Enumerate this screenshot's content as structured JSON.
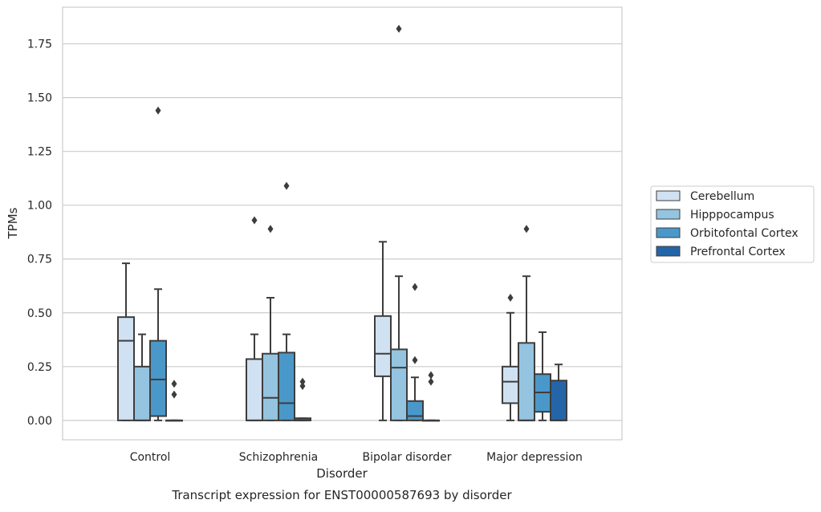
{
  "chart_data": {
    "type": "box",
    "xlabel": "Disorder",
    "ylabel": "TPMs",
    "caption": "Transcript expression for ENST00000587693 by disorder",
    "ylim": [
      -0.09,
      1.92
    ],
    "yticks": [
      "0.00",
      "0.25",
      "0.50",
      "0.75",
      "1.00",
      "1.25",
      "1.50",
      "1.75"
    ],
    "grid": "horizontal",
    "legend_position": "right",
    "categories": [
      "Control",
      "Schizophrenia",
      "Bipolar disorder",
      "Major depression"
    ],
    "series": [
      {
        "name": "Cerebellum",
        "color": "#d0e1f2",
        "boxes": [
          {
            "q1": 0.0,
            "median": 0.37,
            "q3": 0.48,
            "whislo": 0.0,
            "whishi": 0.73,
            "fliers": []
          },
          {
            "q1": 0.0,
            "median": 0.0,
            "q3": 0.285,
            "whislo": 0.0,
            "whishi": 0.4,
            "fliers": [
              0.93
            ]
          },
          {
            "q1": 0.205,
            "median": 0.31,
            "q3": 0.485,
            "whislo": 0.0,
            "whishi": 0.83,
            "fliers": []
          },
          {
            "q1": 0.08,
            "median": 0.18,
            "q3": 0.25,
            "whislo": 0.0,
            "whishi": 0.5,
            "fliers": [
              0.57
            ]
          }
        ]
      },
      {
        "name": "Hipppocampus",
        "color": "#94c4df",
        "boxes": [
          {
            "q1": 0.0,
            "median": 0.0,
            "q3": 0.25,
            "whislo": 0.0,
            "whishi": 0.4,
            "fliers": []
          },
          {
            "q1": 0.0,
            "median": 0.105,
            "q3": 0.31,
            "whislo": 0.0,
            "whishi": 0.57,
            "fliers": [
              0.89
            ]
          },
          {
            "q1": 0.0,
            "median": 0.245,
            "q3": 0.33,
            "whislo": 0.0,
            "whishi": 0.67,
            "fliers": [
              1.82
            ]
          },
          {
            "q1": 0.0,
            "median": 0.0,
            "q3": 0.36,
            "whislo": 0.0,
            "whishi": 0.67,
            "fliers": [
              0.89
            ]
          }
        ]
      },
      {
        "name": "Orbitofontal Cortex",
        "color": "#4a98c9",
        "boxes": [
          {
            "q1": 0.02,
            "median": 0.19,
            "q3": 0.37,
            "whislo": 0.0,
            "whishi": 0.61,
            "fliers": [
              1.44
            ]
          },
          {
            "q1": 0.0,
            "median": 0.08,
            "q3": 0.315,
            "whislo": 0.0,
            "whishi": 0.4,
            "fliers": [
              1.09
            ]
          },
          {
            "q1": 0.0,
            "median": 0.02,
            "q3": 0.09,
            "whislo": 0.0,
            "whishi": 0.2,
            "fliers": [
              0.62,
              0.28
            ]
          },
          {
            "q1": 0.04,
            "median": 0.13,
            "q3": 0.215,
            "whislo": 0.0,
            "whishi": 0.41,
            "fliers": []
          }
        ]
      },
      {
        "name": "Prefrontal Cortex",
        "color": "#2465a8",
        "boxes": [
          {
            "q1": 0.0,
            "median": 0.0,
            "q3": 0.0,
            "whislo": 0.0,
            "whishi": 0.0,
            "fliers": [
              0.17,
              0.12
            ]
          },
          {
            "q1": 0.0,
            "median": 0.0,
            "q3": 0.01,
            "whislo": 0.0,
            "whishi": 0.01,
            "fliers": [
              0.18,
              0.16
            ]
          },
          {
            "q1": 0.0,
            "median": 0.0,
            "q3": 0.0,
            "whislo": 0.0,
            "whishi": 0.0,
            "fliers": [
              0.21,
              0.18
            ]
          },
          {
            "q1": 0.0,
            "median": 0.0,
            "q3": 0.185,
            "whislo": 0.0,
            "whishi": 0.26,
            "fliers": []
          }
        ]
      }
    ]
  }
}
